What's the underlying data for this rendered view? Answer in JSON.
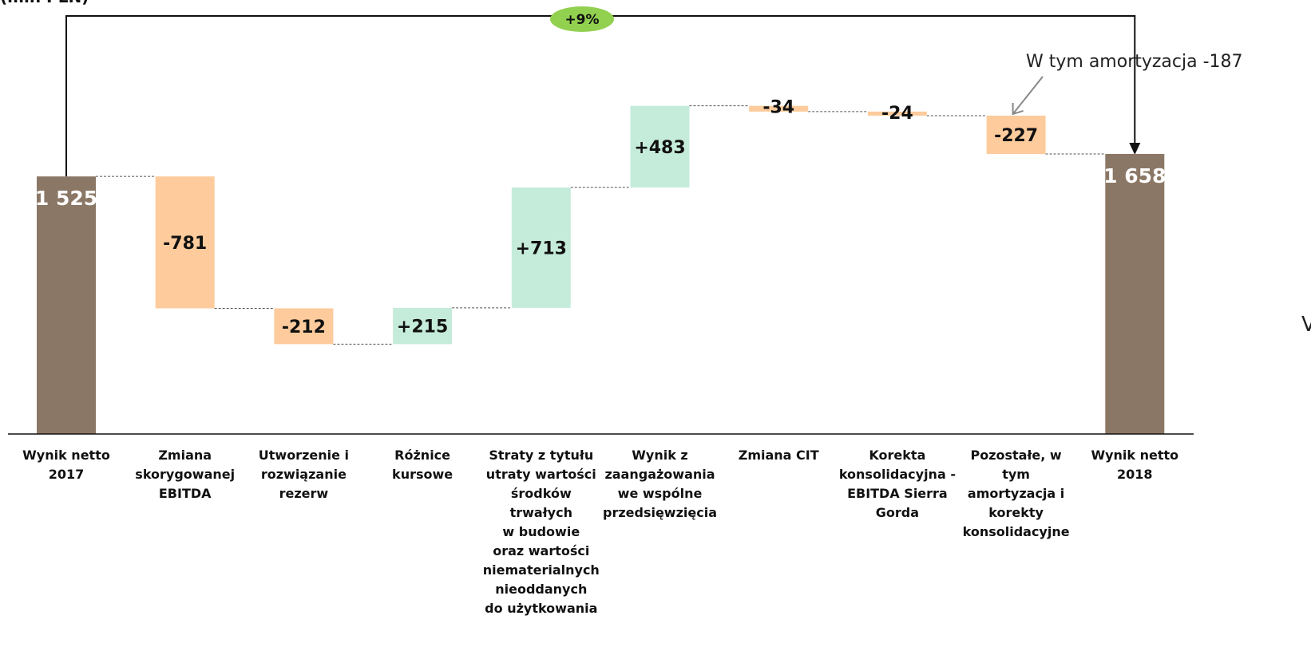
{
  "chart_data": {
    "type": "bar",
    "subtype": "waterfall",
    "unit_label_fragment": "(mln PLN)",
    "categories": [
      [
        "Wynik netto",
        "2017"
      ],
      [
        "Zmiana",
        "skorygowanej",
        "EBITDA"
      ],
      [
        "Utworzenie i",
        "rozwiązanie",
        "rezerw"
      ],
      [
        "Różnice",
        "kursowe"
      ],
      [
        "Straty z tytułu",
        "utraty wartości",
        "środków",
        "trwałych",
        "w budowie",
        "oraz wartości",
        "niematerialnych",
        "nieoddanych",
        "do użytkowania"
      ],
      [
        "Wynik z",
        "zaangażowania",
        "we wspólne",
        "przedsięwzięcia"
      ],
      [
        "Zmiana CIT"
      ],
      [
        "Korekta",
        "konsolidacyjna -",
        "EBITDA Sierra",
        "Gorda"
      ],
      [
        "Pozostałe, w",
        "tym",
        "amortyzacja i",
        "korekty",
        "konsolidacyjne"
      ],
      [
        "Wynik netto",
        "2018"
      ]
    ],
    "values": [
      1525,
      -781,
      -212,
      215,
      713,
      483,
      -34,
      -24,
      -227,
      1658
    ],
    "labels": [
      "1 525",
      "-781",
      "-212",
      "+215",
      "+713",
      "+483",
      "-34",
      "-24",
      "-227",
      "1 658"
    ],
    "kinds": [
      "total",
      "delta",
      "delta",
      "delta",
      "delta",
      "delta",
      "delta",
      "delta",
      "delta",
      "total"
    ],
    "annotation": "W tym amortyzacja -187",
    "change_badge": "+9%",
    "colors": {
      "total": "#8b7765",
      "increase": "#c5ecdb",
      "decrease": "#fdcb9c",
      "badge": "#92d050",
      "connector": "#555555",
      "bracket": "#111111",
      "axis": "#111111"
    },
    "grid": false,
    "legend": "none"
  }
}
